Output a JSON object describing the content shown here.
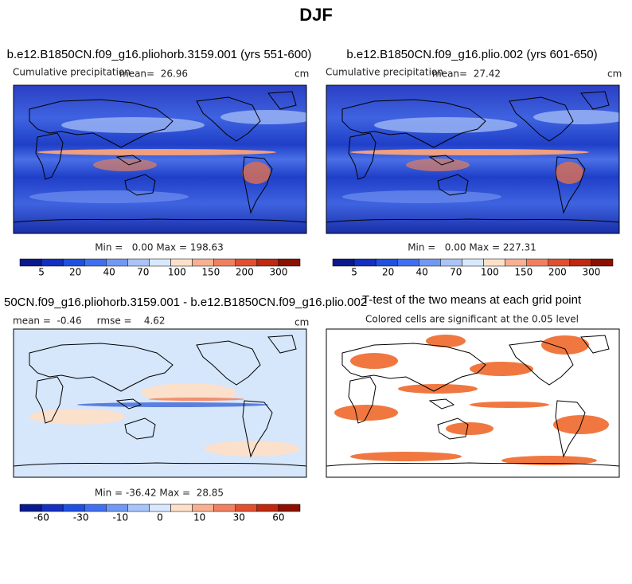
{
  "title": "DJF",
  "panels": [
    {
      "title": "b.e12.B1850CN.f09_g16.pliohorb.3159.001 (yrs 551-600)",
      "left": "Cumulative precipitation",
      "stat": "mean=  26.96",
      "units": "cm",
      "minmax": "Min =   0.00 Max = 198.63",
      "colorbar": [
        5,
        20,
        40,
        70,
        100,
        150,
        200,
        300
      ]
    },
    {
      "title": "b.e12.B1850CN.f09_g16.plio.002 (yrs 601-650)",
      "left": "Cumulative precipitation",
      "stat": "mean=  27.42",
      "units": "cm",
      "minmax": "Min =   0.00 Max = 227.31",
      "colorbar": [
        5,
        20,
        40,
        70,
        100,
        150,
        200,
        300
      ]
    },
    {
      "title": "50CN.f09_g16.pliohorb.3159.001 - b.e12.B1850CN.f09_g16.plio.002",
      "left": "mean =  -0.46     rmse =    4.62",
      "units": "cm",
      "minmax": "Min = -36.42 Max =  28.85",
      "colorbar": [
        -60,
        -30,
        -10,
        0,
        10,
        30,
        60
      ]
    },
    {
      "title": "T-test of the two means at each grid point",
      "subtitle": "Colored cells are significant at the 0.05 level"
    }
  ]
}
